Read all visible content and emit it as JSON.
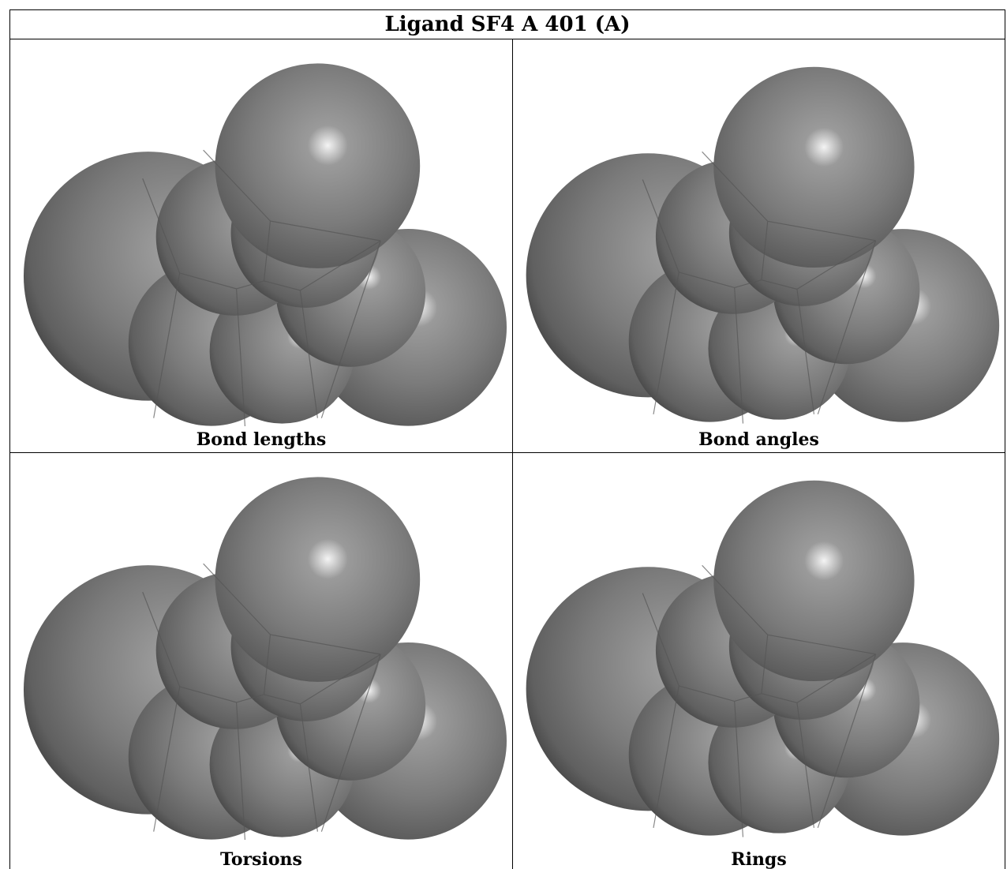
{
  "title": "Ligand SF4 A 401 (A)",
  "panels": [
    {
      "caption": "Bond lengths"
    },
    {
      "caption": "Bond angles"
    },
    {
      "caption": "Torsions"
    },
    {
      "caption": "Rings"
    }
  ],
  "colors": {
    "sphere_base": "#7a7a7a",
    "sphere_dark": "#3c3c3c",
    "sphere_highlight": "#f2f2f2"
  }
}
